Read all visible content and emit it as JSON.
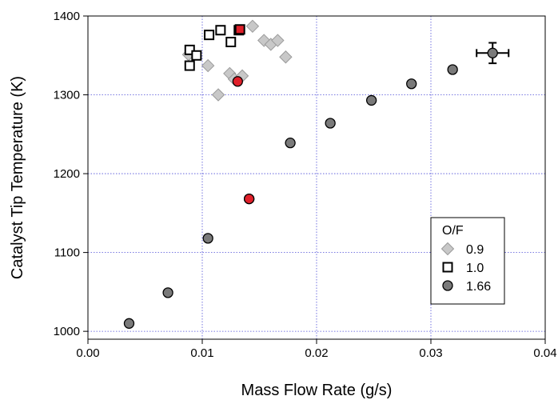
{
  "chart_data": {
    "type": "scatter",
    "title": "",
    "xlabel": "Mass Flow Rate (g/s)",
    "ylabel": "Catalyst Tip Temperature (K)",
    "xlim": [
      0,
      0.04
    ],
    "ylim": [
      990,
      1400
    ],
    "xticks": [
      0.0,
      0.01,
      0.02,
      0.03,
      0.04
    ],
    "xtick_labels": [
      "0.00",
      "0.01",
      "0.02",
      "0.03",
      "0.04"
    ],
    "yticks": [
      1000,
      1100,
      1200,
      1300,
      1400
    ],
    "ytick_labels": [
      "1000",
      "1100",
      "1200",
      "1300",
      "1400"
    ],
    "grid": true,
    "legend": {
      "title": "O/F",
      "placement": "bottom-right"
    },
    "series": [
      {
        "name": "0.9",
        "marker": "diamond",
        "color": "#c8c8c8",
        "points": [
          {
            "x": 0.0088,
            "y": 1351
          },
          {
            "x": 0.0105,
            "y": 1337
          },
          {
            "x": 0.0114,
            "y": 1300
          },
          {
            "x": 0.0124,
            "y": 1327
          },
          {
            "x": 0.0128,
            "y": 1320
          },
          {
            "x": 0.0135,
            "y": 1324
          },
          {
            "x": 0.0144,
            "y": 1387
          },
          {
            "x": 0.0154,
            "y": 1369
          },
          {
            "x": 0.016,
            "y": 1364
          },
          {
            "x": 0.0166,
            "y": 1369
          },
          {
            "x": 0.0173,
            "y": 1348
          }
        ]
      },
      {
        "name": "1.0",
        "marker": "square",
        "color": "#ffffff",
        "points": [
          {
            "x": 0.0089,
            "y": 1337
          },
          {
            "x": 0.0089,
            "y": 1357
          },
          {
            "x": 0.0095,
            "y": 1350
          },
          {
            "x": 0.0106,
            "y": 1376
          },
          {
            "x": 0.0116,
            "y": 1382
          },
          {
            "x": 0.0125,
            "y": 1367
          },
          {
            "x": 0.0132,
            "y": 1382
          }
        ]
      },
      {
        "name": "1.66",
        "marker": "circle",
        "color": "#7a7a7a",
        "points": [
          {
            "x": 0.0036,
            "y": 1010
          },
          {
            "x": 0.007,
            "y": 1049
          },
          {
            "x": 0.0105,
            "y": 1118
          },
          {
            "x": 0.0141,
            "y": 1168
          },
          {
            "x": 0.0177,
            "y": 1239
          },
          {
            "x": 0.0212,
            "y": 1264
          },
          {
            "x": 0.0248,
            "y": 1293
          },
          {
            "x": 0.0283,
            "y": 1314
          },
          {
            "x": 0.0319,
            "y": 1332
          },
          {
            "x": 0.0354,
            "y": 1353
          }
        ]
      }
    ],
    "highlighted_points": [
      {
        "series": "1.0",
        "x": 0.0133,
        "y": 1383,
        "color": "#e0202a"
      },
      {
        "series": "1.66",
        "x": 0.0141,
        "y": 1168,
        "color": "#e0202a"
      },
      {
        "series": "0.9",
        "x": 0.0131,
        "y": 1317,
        "color": "#e0202a"
      }
    ],
    "error_bars": [
      {
        "x": 0.0354,
        "y": 1353,
        "x_err": 0.0014,
        "y_err": 13
      }
    ]
  }
}
